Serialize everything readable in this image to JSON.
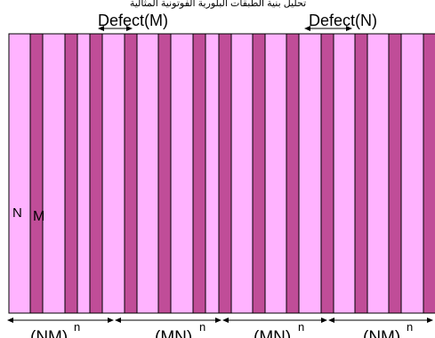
{
  "top_text": "تحليل بنية الطبقات البلورية الفوتونية المثالية",
  "defect_labels": [
    "Defect(M)",
    "Defect(N)"
  ],
  "layer_labels": {
    "n": "N",
    "m": "M"
  },
  "period_labels": [
    {
      "base": "(NM)",
      "exp": "n"
    },
    {
      "base": "(MN)",
      "exp": "n"
    },
    {
      "base": "(MN)",
      "exp": "n"
    },
    {
      "base": "(NM)",
      "exp": "n"
    }
  ],
  "colors": {
    "n_layer": "#ffb3ff",
    "m_layer": "#c04d98",
    "stroke": "#000000"
  },
  "layer_sequence": [
    "N",
    "M",
    "N",
    "M",
    "N",
    "M",
    "N",
    "M",
    "N",
    "M",
    "N",
    "M",
    "N",
    "M",
    "N",
    "M",
    "N",
    "M",
    "N",
    "M",
    "N",
    "M",
    "N",
    "M",
    "N",
    "M",
    "N",
    "M",
    "N",
    "M",
    "N",
    "M",
    "N"
  ],
  "layer_widths": [
    24,
    14,
    25,
    14,
    14,
    14,
    25,
    14,
    24,
    14,
    25,
    14,
    15,
    14,
    24,
    14,
    24,
    14,
    25,
    14,
    24,
    14,
    24,
    14,
    25,
    14,
    24,
    14,
    13,
    14,
    25,
    14,
    13
  ]
}
